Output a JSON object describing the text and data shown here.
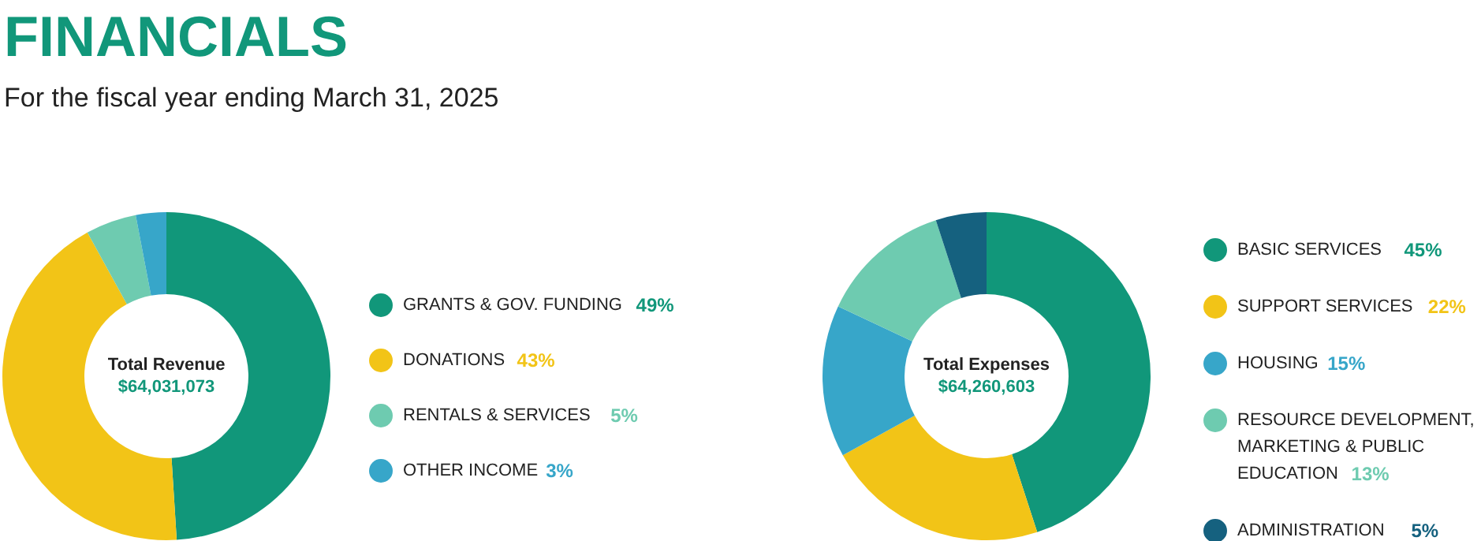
{
  "chart_data": [
    {
      "type": "donut",
      "title": "FINANCIALS",
      "subtitle": "For the fiscal year ending March 31, 2025",
      "categories": [
        "GRANTS & GOV. FUNDING",
        "DONATIONS",
        "RENTALS & SERVICES",
        "OTHER INCOME"
      ],
      "values": [
        49,
        43,
        5,
        3
      ],
      "value_labels": [
        "49%",
        "43%",
        "5%",
        "3%"
      ],
      "colors": [
        "#11977a",
        "#f2c417",
        "#6ecbb0",
        "#37a6c9"
      ],
      "annotations": [
        "Total Revenue",
        "$64,031,073"
      ],
      "legend": "right"
    },
    {
      "type": "donut",
      "categories": [
        "BASIC SERVICES",
        "SUPPORT SERVICES",
        "HOUSING",
        "RESOURCE DEVELOPMENT, MARKETING & PUBLIC EDUCATION",
        "ADMINISTRATION"
      ],
      "values": [
        45,
        22,
        15,
        13,
        5
      ],
      "value_labels": [
        "45%",
        "22%",
        "15%",
        "13%",
        "5%"
      ],
      "colors": [
        "#11977a",
        "#f2c417",
        "#37a6c9",
        "#6ecbb0",
        "#15617f"
      ],
      "annotations": [
        "Total Expenses",
        "$64,260,603"
      ],
      "legend": "right"
    }
  ]
}
